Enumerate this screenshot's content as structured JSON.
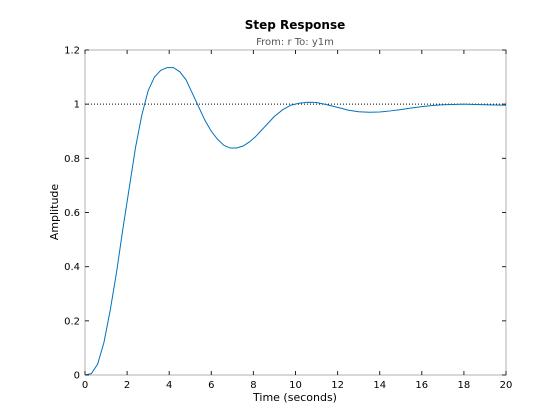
{
  "chart_data": {
    "type": "line",
    "title": "Step Response",
    "subtitle": "From: r  To: y1m",
    "xlabel": "Time (seconds)",
    "ylabel": "Amplitude",
    "xlim": [
      0,
      20
    ],
    "ylim": [
      0,
      1.2
    ],
    "xticks": [
      0,
      2,
      4,
      6,
      8,
      10,
      12,
      14,
      16,
      18,
      20
    ],
    "yticks": [
      0,
      0.2,
      0.4,
      0.6,
      0.8,
      1,
      1.2
    ],
    "grid": false,
    "reference_line": {
      "y": 1,
      "style": "dotted",
      "color": "#000000"
    },
    "series": [
      {
        "color": "#0072bd",
        "x": [
          0,
          0.3,
          0.6,
          0.9,
          1.2,
          1.5,
          1.8,
          2.1,
          2.4,
          2.7,
          3.0,
          3.3,
          3.6,
          3.9,
          4.2,
          4.5,
          4.8,
          5.1,
          5.4,
          5.7,
          6.0,
          6.3,
          6.6,
          6.9,
          7.2,
          7.5,
          7.8,
          8.1,
          8.4,
          8.7,
          9.0,
          9.4,
          9.8,
          10.2,
          10.6,
          11.0,
          11.5,
          12.0,
          12.5,
          13.0,
          13.5,
          14.0,
          14.5,
          15.0,
          15.5,
          16.0,
          16.5,
          17.0,
          17.5,
          18.0,
          18.5,
          19.0,
          19.5,
          20.0
        ],
        "y": [
          0,
          0.005,
          0.04,
          0.12,
          0.24,
          0.38,
          0.54,
          0.69,
          0.84,
          0.96,
          1.05,
          1.1,
          1.125,
          1.135,
          1.135,
          1.12,
          1.09,
          1.04,
          0.99,
          0.94,
          0.9,
          0.87,
          0.848,
          0.838,
          0.838,
          0.845,
          0.86,
          0.88,
          0.905,
          0.93,
          0.955,
          0.98,
          0.997,
          1.004,
          1.007,
          1.006,
          0.998,
          0.988,
          0.978,
          0.972,
          0.97,
          0.971,
          0.975,
          0.98,
          0.986,
          0.991,
          0.995,
          0.998,
          0.999,
          1.0,
          0.999,
          0.998,
          0.997,
          0.996
        ]
      }
    ]
  }
}
